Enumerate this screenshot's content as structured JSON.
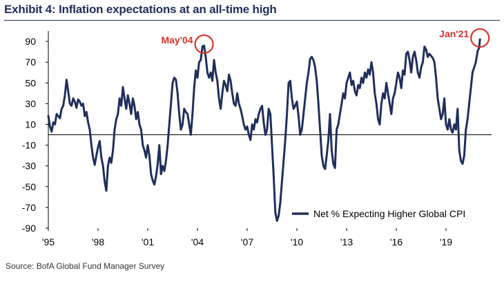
{
  "header": {
    "title": "Exhibit 4: Inflation expectations at an all-time high"
  },
  "footer": {
    "source": "Source: BofA Global Fund Manager Survey"
  },
  "colors": {
    "line": "#1f2e5a",
    "annotation": "#d9342b",
    "axis": "#000000",
    "title": "#1f2e5a"
  },
  "chart_data": {
    "type": "line",
    "title": "Exhibit 4: Inflation expectations at an all-time high",
    "xlabel": "",
    "ylabel": "",
    "xlim": [
      1995.0,
      2021.75
    ],
    "ylim": [
      -90,
      100
    ],
    "y_ticks": [
      90,
      70,
      50,
      30,
      10,
      -10,
      -30,
      -50,
      -70,
      -90
    ],
    "x_ticks": [
      {
        "label": "'95",
        "value": 1995
      },
      {
        "label": "'98",
        "value": 1998
      },
      {
        "label": "'01",
        "value": 2001
      },
      {
        "label": "'04",
        "value": 2004
      },
      {
        "label": "'07",
        "value": 2007
      },
      {
        "label": "'10",
        "value": 2010
      },
      {
        "label": "'13",
        "value": 2013
      },
      {
        "label": "'16",
        "value": 2016
      },
      {
        "label": "'19",
        "value": 2019
      }
    ],
    "grid": false,
    "legend_position": "bottom-right",
    "series": [
      {
        "name": "Net % Expecting Higher Global CPI",
        "points": [
          [
            1995.0,
            18
          ],
          [
            1995.1,
            8
          ],
          [
            1995.2,
            3
          ],
          [
            1995.3,
            12
          ],
          [
            1995.4,
            10
          ],
          [
            1995.5,
            20
          ],
          [
            1995.6,
            18
          ],
          [
            1995.7,
            16
          ],
          [
            1995.8,
            25
          ],
          [
            1995.9,
            28
          ],
          [
            1996.0,
            38
          ],
          [
            1996.1,
            53
          ],
          [
            1996.2,
            42
          ],
          [
            1996.3,
            30
          ],
          [
            1996.4,
            28
          ],
          [
            1996.5,
            35
          ],
          [
            1996.6,
            32
          ],
          [
            1996.7,
            26
          ],
          [
            1996.8,
            34
          ],
          [
            1996.9,
            32
          ],
          [
            1997.0,
            28
          ],
          [
            1997.1,
            30
          ],
          [
            1997.2,
            18
          ],
          [
            1997.3,
            22
          ],
          [
            1997.4,
            12
          ],
          [
            1997.5,
            5
          ],
          [
            1997.6,
            -10
          ],
          [
            1997.7,
            -22
          ],
          [
            1997.8,
            -29
          ],
          [
            1997.9,
            -20
          ],
          [
            1998.0,
            -12
          ],
          [
            1998.1,
            -6
          ],
          [
            1998.2,
            -22
          ],
          [
            1998.3,
            -30
          ],
          [
            1998.4,
            -45
          ],
          [
            1998.5,
            -54
          ],
          [
            1998.6,
            -30
          ],
          [
            1998.7,
            -22
          ],
          [
            1998.8,
            -27
          ],
          [
            1998.9,
            -15
          ],
          [
            1999.0,
            5
          ],
          [
            1999.1,
            15
          ],
          [
            1999.2,
            20
          ],
          [
            1999.3,
            35
          ],
          [
            1999.4,
            28
          ],
          [
            1999.5,
            46
          ],
          [
            1999.6,
            35
          ],
          [
            1999.7,
            25
          ],
          [
            1999.8,
            38
          ],
          [
            1999.9,
            30
          ],
          [
            2000.0,
            20
          ],
          [
            2000.1,
            35
          ],
          [
            2000.2,
            28
          ],
          [
            2000.3,
            15
          ],
          [
            2000.4,
            22
          ],
          [
            2000.5,
            10
          ],
          [
            2000.6,
            5
          ],
          [
            2000.7,
            -10
          ],
          [
            2000.8,
            -15
          ],
          [
            2000.9,
            -22
          ],
          [
            2001.0,
            -10
          ],
          [
            2001.1,
            -20
          ],
          [
            2001.2,
            -38
          ],
          [
            2001.3,
            -44
          ],
          [
            2001.4,
            -48
          ],
          [
            2001.5,
            -40
          ],
          [
            2001.6,
            -28
          ],
          [
            2001.7,
            -10
          ],
          [
            2001.8,
            -38
          ],
          [
            2001.9,
            -30
          ],
          [
            2002.0,
            -35
          ],
          [
            2002.1,
            -25
          ],
          [
            2002.2,
            -10
          ],
          [
            2002.3,
            10
          ],
          [
            2002.4,
            30
          ],
          [
            2002.5,
            50
          ],
          [
            2002.6,
            55
          ],
          [
            2002.7,
            53
          ],
          [
            2002.8,
            40
          ],
          [
            2002.9,
            20
          ],
          [
            2003.0,
            5
          ],
          [
            2003.1,
            10
          ],
          [
            2003.2,
            25
          ],
          [
            2003.3,
            22
          ],
          [
            2003.4,
            20
          ],
          [
            2003.5,
            10
          ],
          [
            2003.6,
            0
          ],
          [
            2003.7,
            20
          ],
          [
            2003.8,
            45
          ],
          [
            2003.9,
            62
          ],
          [
            2004.0,
            55
          ],
          [
            2004.1,
            70
          ],
          [
            2004.2,
            72
          ],
          [
            2004.3,
            85
          ],
          [
            2004.4,
            86
          ],
          [
            2004.5,
            75
          ],
          [
            2004.6,
            60
          ],
          [
            2004.7,
            55
          ],
          [
            2004.8,
            60
          ],
          [
            2004.9,
            52
          ],
          [
            2005.0,
            72
          ],
          [
            2005.1,
            60
          ],
          [
            2005.2,
            52
          ],
          [
            2005.3,
            35
          ],
          [
            2005.4,
            25
          ],
          [
            2005.5,
            40
          ],
          [
            2005.6,
            52
          ],
          [
            2005.7,
            48
          ],
          [
            2005.8,
            42
          ],
          [
            2005.9,
            58
          ],
          [
            2006.0,
            52
          ],
          [
            2006.1,
            40
          ],
          [
            2006.2,
            30
          ],
          [
            2006.3,
            28
          ],
          [
            2006.4,
            40
          ],
          [
            2006.5,
            30
          ],
          [
            2006.6,
            25
          ],
          [
            2006.7,
            18
          ],
          [
            2006.8,
            10
          ],
          [
            2006.9,
            5
          ],
          [
            2007.0,
            8
          ],
          [
            2007.1,
            0
          ],
          [
            2007.2,
            -5
          ],
          [
            2007.3,
            10
          ],
          [
            2007.4,
            5
          ],
          [
            2007.5,
            15
          ],
          [
            2007.6,
            12
          ],
          [
            2007.7,
            20
          ],
          [
            2007.8,
            25
          ],
          [
            2007.9,
            28
          ],
          [
            2008.0,
            12
          ],
          [
            2008.1,
            0
          ],
          [
            2008.2,
            5
          ],
          [
            2008.3,
            25
          ],
          [
            2008.4,
            20
          ],
          [
            2008.5,
            -10
          ],
          [
            2008.6,
            -40
          ],
          [
            2008.7,
            -75
          ],
          [
            2008.8,
            -83
          ],
          [
            2008.9,
            -78
          ],
          [
            2009.0,
            -65
          ],
          [
            2009.1,
            -45
          ],
          [
            2009.2,
            -25
          ],
          [
            2009.3,
            -5
          ],
          [
            2009.4,
            20
          ],
          [
            2009.5,
            50
          ],
          [
            2009.6,
            52
          ],
          [
            2009.7,
            35
          ],
          [
            2009.8,
            25
          ],
          [
            2009.9,
            28
          ],
          [
            2010.0,
            32
          ],
          [
            2010.1,
            18
          ],
          [
            2010.2,
            0
          ],
          [
            2010.3,
            5
          ],
          [
            2010.4,
            20
          ],
          [
            2010.5,
            35
          ],
          [
            2010.6,
            50
          ],
          [
            2010.7,
            60
          ],
          [
            2010.8,
            73
          ],
          [
            2010.9,
            75
          ],
          [
            2011.0,
            72
          ],
          [
            2011.1,
            65
          ],
          [
            2011.2,
            52
          ],
          [
            2011.3,
            30
          ],
          [
            2011.4,
            5
          ],
          [
            2011.5,
            -20
          ],
          [
            2011.6,
            -30
          ],
          [
            2011.7,
            -33
          ],
          [
            2011.8,
            -20
          ],
          [
            2011.9,
            -5
          ],
          [
            2012.0,
            20
          ],
          [
            2012.1,
            -15
          ],
          [
            2012.2,
            -28
          ],
          [
            2012.3,
            -32
          ],
          [
            2012.4,
            5
          ],
          [
            2012.5,
            10
          ],
          [
            2012.6,
            20
          ],
          [
            2012.7,
            30
          ],
          [
            2012.8,
            40
          ],
          [
            2012.9,
            35
          ],
          [
            2013.0,
            50
          ],
          [
            2013.1,
            55
          ],
          [
            2013.2,
            60
          ],
          [
            2013.3,
            48
          ],
          [
            2013.4,
            52
          ],
          [
            2013.5,
            42
          ],
          [
            2013.6,
            38
          ],
          [
            2013.7,
            48
          ],
          [
            2013.8,
            45
          ],
          [
            2013.9,
            55
          ],
          [
            2014.0,
            50
          ],
          [
            2014.1,
            60
          ],
          [
            2014.2,
            55
          ],
          [
            2014.3,
            63
          ],
          [
            2014.4,
            58
          ],
          [
            2014.5,
            70
          ],
          [
            2014.6,
            60
          ],
          [
            2014.7,
            40
          ],
          [
            2014.8,
            30
          ],
          [
            2014.9,
            15
          ],
          [
            2015.0,
            10
          ],
          [
            2015.1,
            30
          ],
          [
            2015.2,
            40
          ],
          [
            2015.3,
            35
          ],
          [
            2015.4,
            50
          ],
          [
            2015.5,
            40
          ],
          [
            2015.6,
            30
          ],
          [
            2015.7,
            20
          ],
          [
            2015.8,
            35
          ],
          [
            2015.9,
            40
          ],
          [
            2016.0,
            50
          ],
          [
            2016.1,
            60
          ],
          [
            2016.2,
            55
          ],
          [
            2016.3,
            45
          ],
          [
            2016.4,
            62
          ],
          [
            2016.5,
            58
          ],
          [
            2016.6,
            78
          ],
          [
            2016.7,
            80
          ],
          [
            2016.8,
            72
          ],
          [
            2016.9,
            60
          ],
          [
            2017.0,
            75
          ],
          [
            2017.1,
            80
          ],
          [
            2017.2,
            72
          ],
          [
            2017.3,
            60
          ],
          [
            2017.4,
            55
          ],
          [
            2017.5,
            65
          ],
          [
            2017.6,
            70
          ],
          [
            2017.7,
            85
          ],
          [
            2017.8,
            82
          ],
          [
            2017.9,
            75
          ],
          [
            2018.0,
            78
          ],
          [
            2018.1,
            76
          ],
          [
            2018.2,
            74
          ],
          [
            2018.3,
            70
          ],
          [
            2018.4,
            55
          ],
          [
            2018.5,
            35
          ],
          [
            2018.6,
            25
          ],
          [
            2018.7,
            15
          ],
          [
            2018.8,
            20
          ],
          [
            2018.9,
            35
          ],
          [
            2019.0,
            10
          ],
          [
            2019.1,
            5
          ],
          [
            2019.2,
            15
          ],
          [
            2019.3,
            5
          ],
          [
            2019.4,
            2
          ],
          [
            2019.5,
            10
          ],
          [
            2019.6,
            5
          ],
          [
            2019.7,
            25
          ],
          [
            2019.8,
            -15
          ],
          [
            2019.9,
            -25
          ],
          [
            2020.0,
            -28
          ],
          [
            2020.1,
            -20
          ],
          [
            2020.2,
            5
          ],
          [
            2020.3,
            15
          ],
          [
            2020.4,
            30
          ],
          [
            2020.5,
            45
          ],
          [
            2020.6,
            60
          ],
          [
            2020.7,
            65
          ],
          [
            2020.8,
            70
          ],
          [
            2020.9,
            80
          ],
          [
            2021.0,
            84
          ],
          [
            2021.05,
            92
          ]
        ]
      }
    ],
    "annotations": [
      {
        "text": "May'04",
        "x": 2004.4,
        "y": 86,
        "marker": "circle"
      },
      {
        "text": "Jan'21",
        "x": 2021.05,
        "y": 92,
        "marker": "circle"
      }
    ]
  }
}
